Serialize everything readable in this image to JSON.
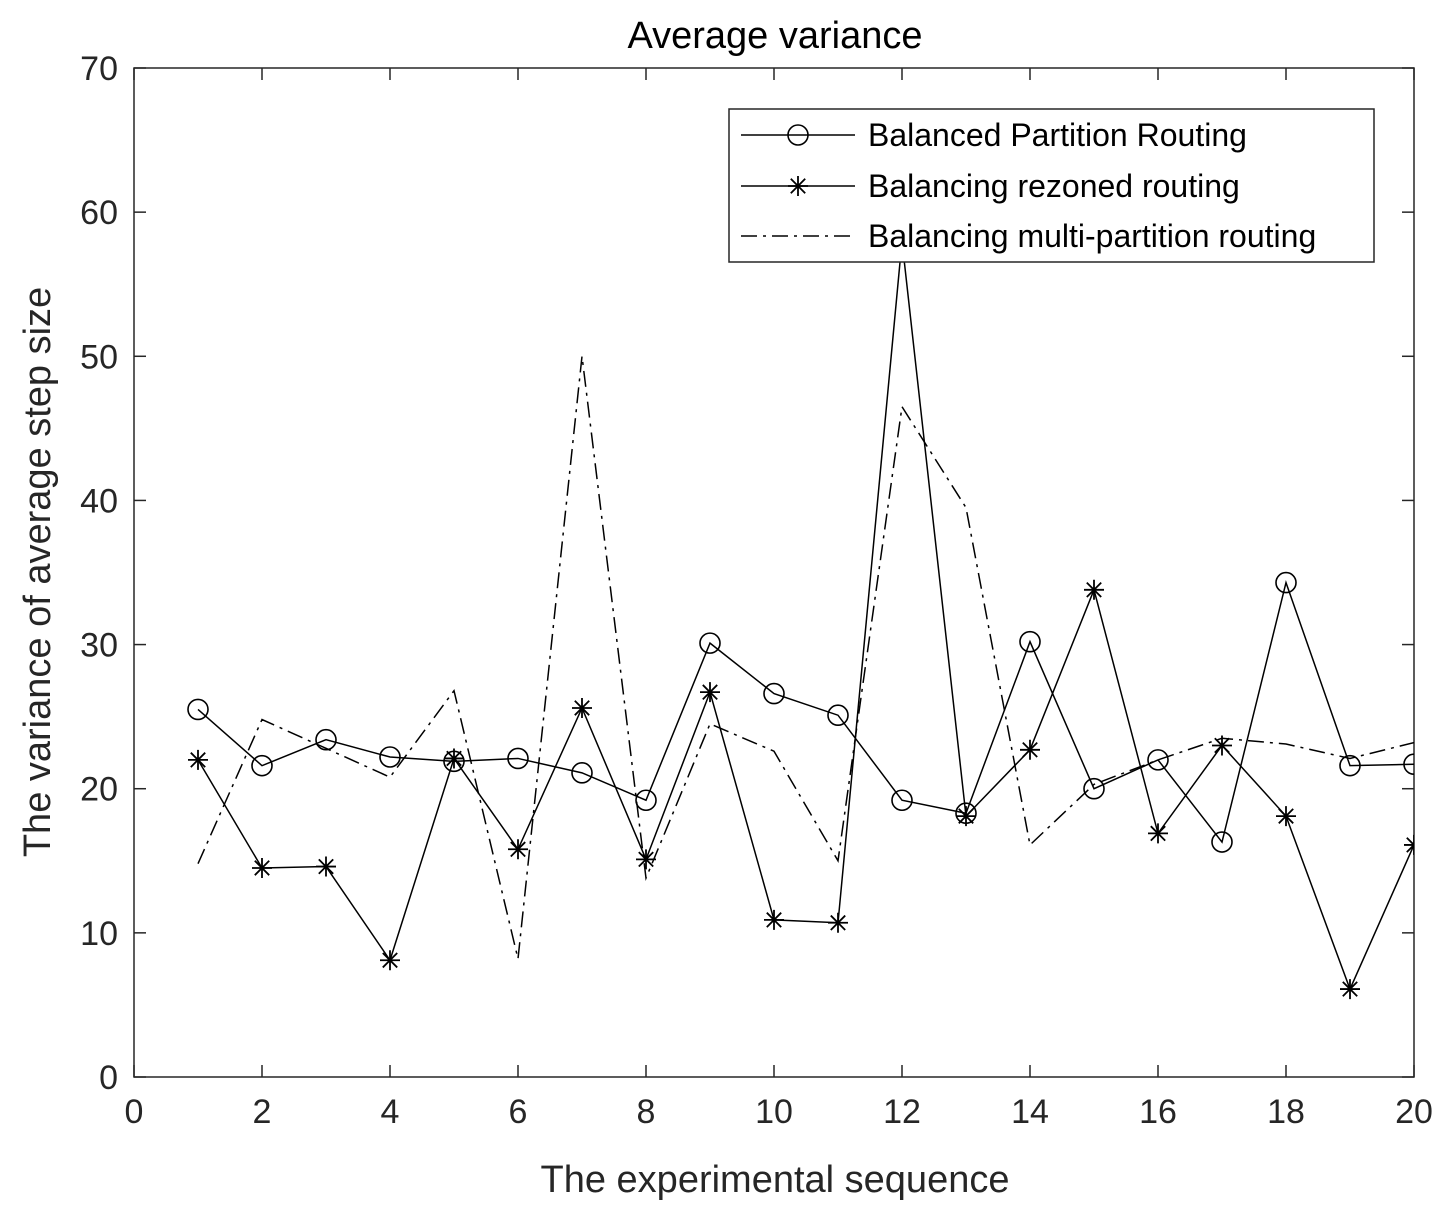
{
  "chart_data": {
    "type": "line",
    "title": "Average variance",
    "xlabel": "The experimental sequence",
    "ylabel": "The variance of average step size",
    "xlim": [
      0,
      20
    ],
    "ylim": [
      0,
      70
    ],
    "xticks": [
      0,
      2,
      4,
      6,
      8,
      10,
      12,
      14,
      16,
      18,
      20
    ],
    "yticks": [
      0,
      10,
      20,
      30,
      40,
      50,
      60,
      70
    ],
    "legend_position": "top-right",
    "x": [
      1,
      2,
      3,
      4,
      5,
      6,
      7,
      8,
      9,
      10,
      11,
      12,
      13,
      14,
      15,
      16,
      17,
      18,
      19,
      20
    ],
    "series": [
      {
        "name": "Balanced Partition Routing",
        "marker": "circle",
        "line_style": "solid",
        "color": "#000000",
        "values": [
          25.5,
          21.6,
          23.4,
          22.2,
          21.9,
          22.1,
          21.1,
          19.2,
          30.1,
          26.6,
          25.1,
          19.2,
          18.3,
          30.2,
          20.0,
          22.0,
          16.3,
          34.3,
          21.6,
          21.7
        ]
      },
      {
        "name": "Balancing rezoned routing",
        "marker": "star",
        "line_style": "solid",
        "color": "#000000",
        "values": [
          22.0,
          14.5,
          14.6,
          8.1,
          22.1,
          15.8,
          25.6,
          15.1,
          26.7,
          10.9,
          10.7,
          58.0,
          18.1,
          22.7,
          33.8,
          16.9,
          23.0,
          18.1,
          6.1,
          16.1
        ]
      },
      {
        "name": "Balancing multi-partition routing",
        "marker": "none",
        "line_style": "dashdot",
        "color": "#000000",
        "values": [
          14.8,
          24.8,
          22.8,
          20.8,
          26.8,
          8.2,
          50.0,
          13.8,
          24.5,
          22.6,
          15.0,
          46.5,
          39.5,
          16.1,
          20.3,
          22.0,
          23.5,
          23.1,
          22.1,
          23.2
        ]
      }
    ]
  }
}
